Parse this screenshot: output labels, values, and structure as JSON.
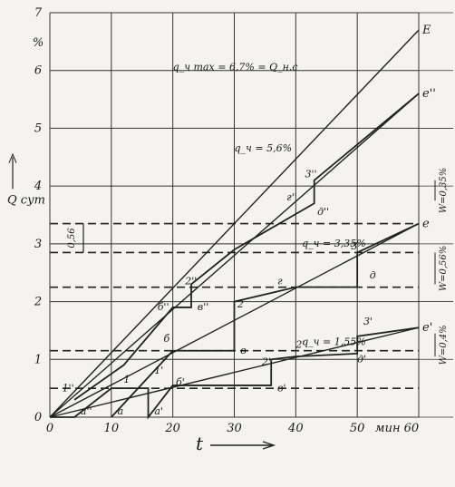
{
  "chart_data": {
    "type": "line",
    "xlabel": "t",
    "x_unit": "мин",
    "ylabel": "Q_сут",
    "y_unit": "%",
    "xlim": [
      0,
      60
    ],
    "ylim": [
      0,
      7
    ],
    "x_ticks": [
      0,
      10,
      20,
      30,
      40,
      50,
      60
    ],
    "y_ticks": [
      0,
      1,
      2,
      3,
      4,
      5,
      6,
      7
    ],
    "x_tick_labels": [
      "0",
      "10",
      "20",
      "30",
      "40",
      "50",
      "мин 60"
    ],
    "y_tick_labels": [
      "0",
      "1",
      "2",
      "3",
      "4",
      "5",
      "6",
      "7"
    ],
    "grid": true,
    "demand_lines": [
      {
        "label": "q_ч max = 6,7% = Q_н.с",
        "end_label": "E",
        "x": [
          0,
          60
        ],
        "y": [
          0,
          6.7
        ]
      },
      {
        "label": "q_ч = 5,6%",
        "end_label": "e''",
        "x": [
          0,
          60
        ],
        "y": [
          0,
          5.6
        ]
      },
      {
        "label": "q_ч = 3,35%",
        "end_label": "e",
        "x": [
          0,
          60
        ],
        "y": [
          0,
          3.35
        ]
      },
      {
        "label": "q_ч = 1,55%",
        "end_label": "e'",
        "x": [
          0,
          60
        ],
        "y": [
          0,
          1.55
        ]
      }
    ],
    "supply_lines": [
      {
        "name": "upper",
        "x": [
          4,
          12,
          20,
          23,
          23,
          30,
          43,
          43,
          60
        ],
        "y": [
          0.3,
          0.9,
          1.9,
          1.9,
          2.3,
          2.9,
          3.7,
          4.1,
          5.6
        ]
      },
      {
        "name": "middle",
        "x": [
          10,
          20,
          30,
          30,
          40,
          50,
          50,
          60
        ],
        "y": [
          0,
          1.15,
          1.15,
          2.0,
          2.25,
          2.25,
          2.85,
          3.35
        ]
      },
      {
        "name": "lower",
        "x": [
          0,
          4,
          10,
          16,
          16,
          20,
          36,
          36,
          40,
          50,
          50,
          60
        ],
        "y": [
          0,
          0,
          0.5,
          0.5,
          0,
          0.55,
          0.55,
          1.0,
          1.05,
          1.1,
          1.4,
          1.55
        ]
      }
    ],
    "dashed_levels": [
      3.35,
      2.85,
      2.25,
      1.15,
      0.5
    ],
    "side_labels": [
      {
        "text": "W=0,35%",
        "y": [
          3.75,
          4.1
        ]
      },
      {
        "text": "W=0,56%",
        "y": [
          2.3,
          2.85
        ]
      },
      {
        "text": "W=0,4%",
        "y": [
          1.05,
          1.45
        ]
      }
    ],
    "left_bracket": {
      "text": "0,56",
      "y": [
        2.85,
        3.35
      ]
    },
    "point_labels": [
      {
        "text": "1''",
        "x": 2,
        "y": 0.45
      },
      {
        "text": "a''",
        "x": 5,
        "y": 0.05
      },
      {
        "text": "1",
        "x": 12,
        "y": 0.6
      },
      {
        "text": "a",
        "x": 11,
        "y": 0.05
      },
      {
        "text": "1'",
        "x": 17,
        "y": 0.75
      },
      {
        "text": "a'",
        "x": 17,
        "y": 0.05
      },
      {
        "text": "б'",
        "x": 20.5,
        "y": 0.55
      },
      {
        "text": "б''",
        "x": 17.5,
        "y": 1.85
      },
      {
        "text": "2''",
        "x": 22,
        "y": 2.3
      },
      {
        "text": "в''",
        "x": 24,
        "y": 1.85
      },
      {
        "text": "б",
        "x": 18.5,
        "y": 1.3
      },
      {
        "text": "2",
        "x": 30.5,
        "y": 1.9
      },
      {
        "text": "в",
        "x": 31,
        "y": 1.1
      },
      {
        "text": "г",
        "x": 37,
        "y": 2.3
      },
      {
        "text": "д",
        "x": 52,
        "y": 2.4
      },
      {
        "text": "3",
        "x": 49,
        "y": 2.9
      },
      {
        "text": "г''",
        "x": 38.5,
        "y": 3.75
      },
      {
        "text": "3''",
        "x": 41.5,
        "y": 4.15
      },
      {
        "text": "д''",
        "x": 43.5,
        "y": 3.5
      },
      {
        "text": "2'",
        "x": 34.5,
        "y": 0.9
      },
      {
        "text": "2'",
        "x": 40,
        "y": 1.2
      },
      {
        "text": "в'",
        "x": 37,
        "y": 0.45
      },
      {
        "text": "3'",
        "x": 51,
        "y": 1.6
      },
      {
        "text": "д'",
        "x": 50,
        "y": 0.95
      }
    ]
  }
}
